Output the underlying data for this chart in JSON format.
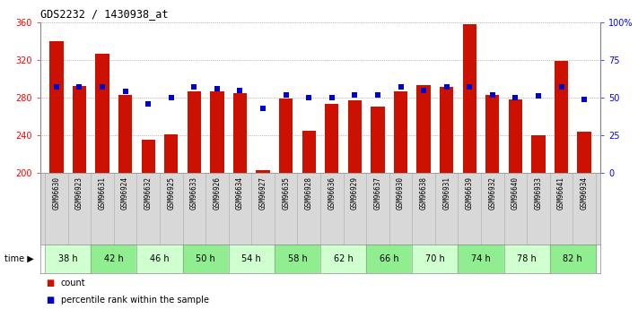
{
  "title": "GDS2232 / 1430938_at",
  "samples": [
    "GSM96630",
    "GSM96923",
    "GSM96631",
    "GSM96924",
    "GSM96632",
    "GSM96925",
    "GSM96633",
    "GSM96926",
    "GSM96634",
    "GSM96927",
    "GSM96635",
    "GSM96928",
    "GSM96636",
    "GSM96929",
    "GSM96637",
    "GSM96930",
    "GSM96638",
    "GSM96931",
    "GSM96639",
    "GSM96932",
    "GSM96640",
    "GSM96933",
    "GSM96641",
    "GSM96934"
  ],
  "counts": [
    340,
    292,
    327,
    283,
    235,
    241,
    287,
    287,
    285,
    203,
    279,
    245,
    273,
    277,
    270,
    287,
    293,
    291,
    358,
    283,
    278,
    240,
    319,
    244
  ],
  "percentile_ranks": [
    57,
    57,
    57,
    54,
    46,
    50,
    57,
    56,
    55,
    43,
    52,
    50,
    50,
    52,
    52,
    57,
    55,
    57,
    57,
    52,
    50,
    51,
    57,
    49
  ],
  "time_groups": [
    {
      "label": "38 h",
      "start": 0,
      "end": 2
    },
    {
      "label": "42 h",
      "start": 2,
      "end": 4
    },
    {
      "label": "46 h",
      "start": 4,
      "end": 6
    },
    {
      "label": "50 h",
      "start": 6,
      "end": 8
    },
    {
      "label": "54 h",
      "start": 8,
      "end": 10
    },
    {
      "label": "58 h",
      "start": 10,
      "end": 12
    },
    {
      "label": "62 h",
      "start": 12,
      "end": 14
    },
    {
      "label": "66 h",
      "start": 14,
      "end": 16
    },
    {
      "label": "70 h",
      "start": 16,
      "end": 18
    },
    {
      "label": "74 h",
      "start": 18,
      "end": 20
    },
    {
      "label": "78 h",
      "start": 20,
      "end": 22
    },
    {
      "label": "82 h",
      "start": 22,
      "end": 24
    }
  ],
  "group_colors": [
    "#d0ffd0",
    "#90ee90"
  ],
  "bar_color": "#cc1100",
  "dot_color": "#0000cc",
  "ylim_left": [
    200,
    360
  ],
  "ylim_right": [
    0,
    100
  ],
  "yticks_left": [
    200,
    240,
    280,
    320,
    360
  ],
  "ytick_labels_right": [
    "0",
    "25",
    "50",
    "75",
    "100%"
  ],
  "bar_width": 0.6,
  "plot_bg_color": "#ffffff",
  "sample_band_color": "#d8d8d8",
  "legend_count_label": "count",
  "legend_pct_label": "percentile rank within the sample"
}
